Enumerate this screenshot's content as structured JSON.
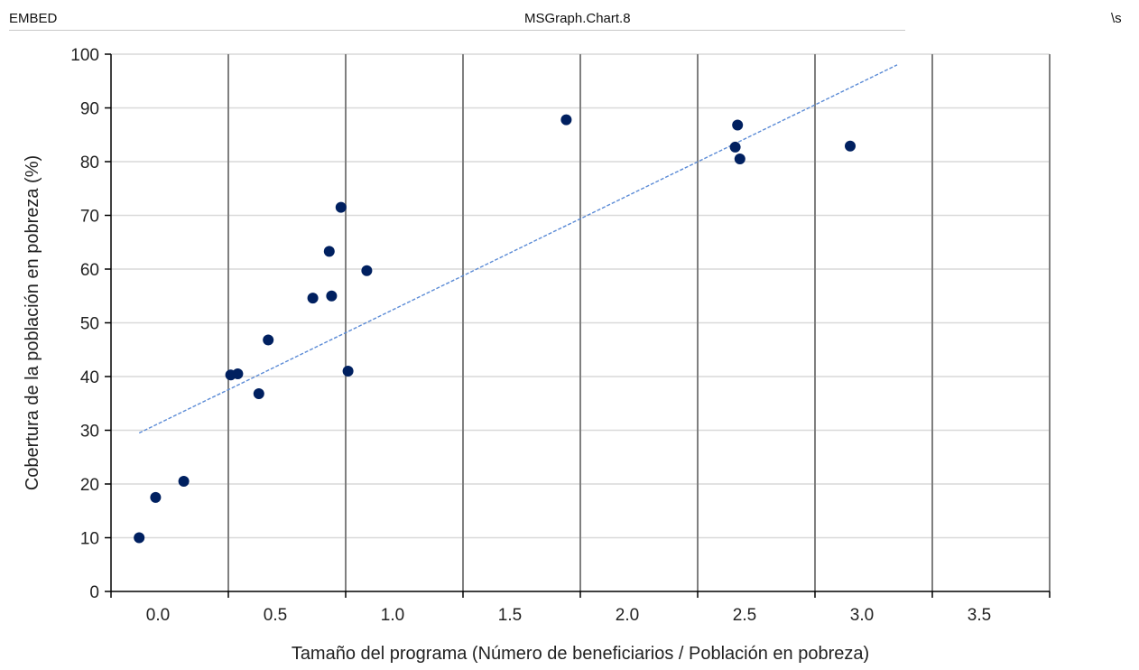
{
  "header": {
    "field_code": "EMBED",
    "field_class": "MSGraph.Chart.8",
    "field_switch": "\\s"
  },
  "colors": {
    "point": "#002060",
    "trendline": "#5b8bd6",
    "gridline": "#d9d9d9",
    "vertical_gridline": "#7f7f7f",
    "axis": "#000000"
  },
  "chart_data": {
    "type": "scatter",
    "title": "",
    "xlabel": "Tamaño del programa (Número de beneficiarios / Población en pobreza)",
    "ylabel": "Cobertura de la población en pobreza (%)",
    "xlim": [
      -0.2,
      3.8
    ],
    "ylim": [
      0,
      100
    ],
    "x_ticks": [
      0.0,
      0.5,
      1.0,
      1.5,
      2.0,
      2.5,
      3.0,
      3.5
    ],
    "x_tick_labels": [
      "0.0",
      "0.5",
      "1.0",
      "1.5",
      "2.0",
      "2.5",
      "3.0",
      "3.5"
    ],
    "y_ticks": [
      0,
      10,
      20,
      30,
      40,
      50,
      60,
      70,
      80,
      90,
      100
    ],
    "y_tick_labels": [
      "0",
      "10",
      "20",
      "30",
      "40",
      "50",
      "60",
      "70",
      "80",
      "90",
      "100"
    ],
    "grid": true,
    "legend": "none",
    "series": [
      {
        "x": [
          -0.08,
          -0.01,
          0.11,
          0.31,
          0.34,
          0.43,
          0.47,
          0.66,
          0.73,
          0.74,
          0.81,
          0.78,
          0.89,
          1.74,
          2.46,
          2.47,
          2.48,
          2.95
        ],
        "y": [
          10,
          17.5,
          20.5,
          40.3,
          40.5,
          36.8,
          46.8,
          54.6,
          63.3,
          55,
          41,
          71.5,
          59.7,
          87.8,
          82.7,
          86.8,
          80.5,
          82.9
        ]
      }
    ],
    "trendline": {
      "x": [
        -0.08,
        3.15
      ],
      "y": [
        29.5,
        98
      ]
    }
  }
}
